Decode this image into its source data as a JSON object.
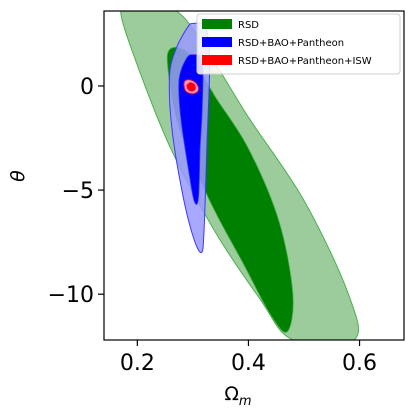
{
  "chart_data": {
    "type": "contour",
    "xlabel_base": "Ω",
    "xlabel_sub": "m",
    "ylabel": "θ",
    "xlim": [
      0.14,
      0.68
    ],
    "ylim": [
      -12.2,
      3.6
    ],
    "xticks": [
      0.2,
      0.4,
      0.6
    ],
    "xtick_labels": [
      "0.2",
      "0.4",
      "0.6"
    ],
    "yticks": [
      0,
      -5,
      -10
    ],
    "ytick_labels": [
      "0",
      "−5",
      "−10"
    ],
    "grid": false,
    "legend_position": "top-right",
    "series": [
      {
        "name": "RSD",
        "color_outer": "#9ccc9c",
        "color_inner": "#008000",
        "edge": "#4caf50",
        "contours": [
          {
            "level": "2sigma",
            "points": [
              [
                0.2,
                3.6
              ],
              [
                0.27,
                3.6
              ],
              [
                0.33,
                1.5
              ],
              [
                0.4,
                -1.5
              ],
              [
                0.5,
                -5.5
              ],
              [
                0.58,
                -10
              ],
              [
                0.59,
                -12.2
              ],
              [
                0.48,
                -12.2
              ],
              [
                0.42,
                -10.2
              ],
              [
                0.34,
                -7
              ],
              [
                0.26,
                -3
              ],
              [
                0.2,
                1
              ],
              [
                0.17,
                3.6
              ]
            ]
          },
          {
            "level": "1sigma",
            "points": [
              [
                0.26,
                1.8
              ],
              [
                0.295,
                1.5
              ],
              [
                0.34,
                -0.5
              ],
              [
                0.4,
                -3
              ],
              [
                0.455,
                -6.5
              ],
              [
                0.48,
                -10
              ],
              [
                0.47,
                -11.8
              ],
              [
                0.44,
                -11
              ],
              [
                0.39,
                -8.5
              ],
              [
                0.33,
                -5.5
              ],
              [
                0.275,
                -2
              ],
              [
                0.255,
                0.8
              ]
            ]
          }
        ]
      },
      {
        "name": "RSD+BAO+Pantheon",
        "color_outer": "#9999ff",
        "color_inner": "#0000ff",
        "edge": "#3a3aff",
        "contours": [
          {
            "level": "2sigma",
            "points": [
              [
                0.3,
                3
              ],
              [
                0.323,
                2.8
              ],
              [
                0.33,
                1
              ],
              [
                0.325,
                -3
              ],
              [
                0.32,
                -7
              ],
              [
                0.315,
                -8
              ],
              [
                0.3,
                -7.2
              ],
              [
                0.28,
                -5
              ],
              [
                0.262,
                -2
              ],
              [
                0.258,
                0.5
              ],
              [
                0.27,
                1.8
              ],
              [
                0.29,
                2.8
              ]
            ]
          },
          {
            "level": "1sigma",
            "points": [
              [
                0.3,
                1.5
              ],
              [
                0.317,
                1.2
              ],
              [
                0.317,
                -1
              ],
              [
                0.313,
                -3
              ],
              [
                0.31,
                -5.4
              ],
              [
                0.302,
                -5.5
              ],
              [
                0.292,
                -4
              ],
              [
                0.278,
                -1.5
              ],
              [
                0.275,
                0.3
              ],
              [
                0.288,
                1.3
              ]
            ]
          }
        ]
      },
      {
        "name": "RSD+BAO+Pantheon+ISW",
        "color_outer": "#ff9aaa",
        "color_inner": "#ff0000",
        "edge": "#e0005a",
        "contours": [
          {
            "level": "2sigma",
            "points": [
              [
                0.284,
                0.15
              ],
              [
                0.29,
                0.3
              ],
              [
                0.3,
                0.25
              ],
              [
                0.308,
                0.05
              ],
              [
                0.31,
                -0.2
              ],
              [
                0.304,
                -0.35
              ],
              [
                0.294,
                -0.35
              ],
              [
                0.286,
                -0.2
              ]
            ]
          },
          {
            "level": "1sigma",
            "points": [
              [
                0.29,
                0.05
              ],
              [
                0.296,
                0.15
              ],
              [
                0.303,
                0.05
              ],
              [
                0.304,
                -0.15
              ],
              [
                0.298,
                -0.25
              ],
              [
                0.291,
                -0.15
              ]
            ]
          }
        ]
      }
    ]
  }
}
